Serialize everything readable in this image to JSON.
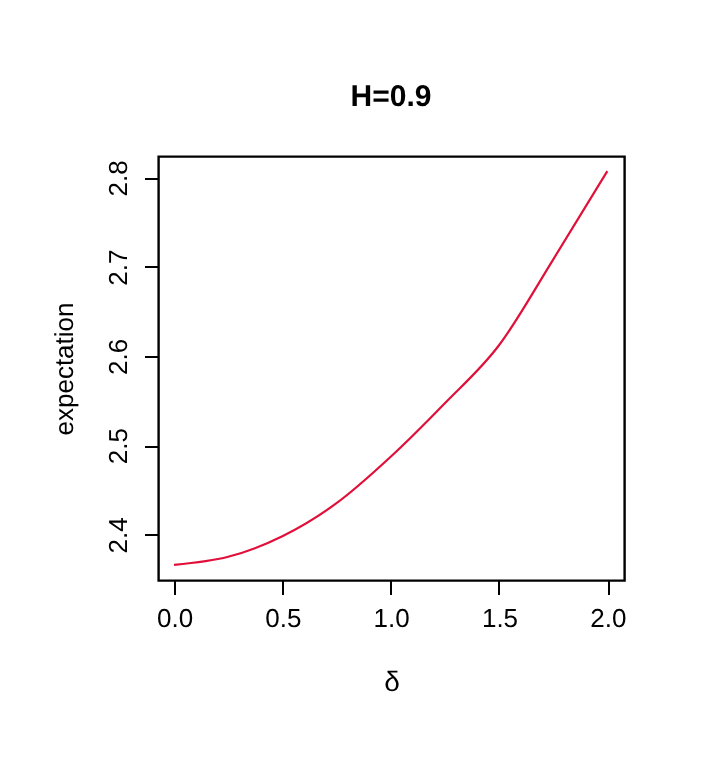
{
  "chart_data": {
    "type": "line",
    "title": "H=0.9",
    "xlabel": "δ",
    "ylabel": "expectation",
    "x": [
      0,
      0.25,
      0.5,
      0.75,
      1.0,
      1.25,
      1.5,
      1.75,
      2.0
    ],
    "series": [
      {
        "color": "#e0103a",
        "values": [
          2.366,
          2.375,
          2.398,
          2.435,
          2.487,
          2.547,
          2.612,
          2.708,
          2.807
        ]
      }
    ],
    "xlim": [
      -0.074,
      2.077
    ],
    "ylim": [
      2.349,
      2.824
    ],
    "xticks": [
      {
        "value": 0,
        "label": "0.0"
      },
      0.5,
      {
        "value": 1,
        "label": "1.0"
      },
      1.5,
      {
        "value": 2,
        "label": "2.0"
      }
    ],
    "yticks": [
      2.4,
      2.5,
      2.6,
      2.7,
      2.8
    ],
    "grid": false,
    "marker": "none",
    "line_style": "solid"
  }
}
